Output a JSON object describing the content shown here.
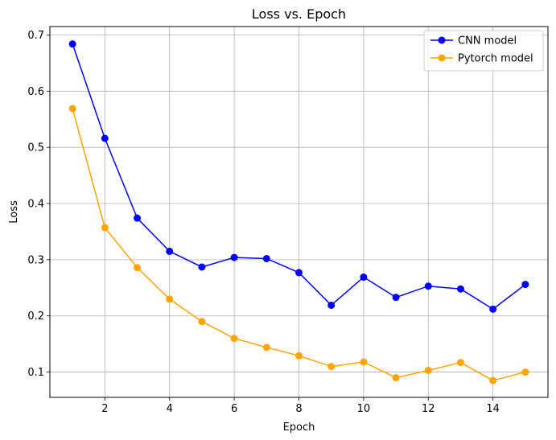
{
  "chart_data": {
    "type": "line",
    "title": "Loss vs. Epoch",
    "xlabel": "Epoch",
    "ylabel": "Loss",
    "xlim": [
      0.3,
      15.7
    ],
    "ylim": [
      0.055,
      0.715
    ],
    "xticks": [
      2,
      4,
      6,
      8,
      10,
      12,
      14
    ],
    "yticks": [
      0.1,
      0.2,
      0.3,
      0.4,
      0.5,
      0.6,
      0.7
    ],
    "grid": true,
    "legend_position": "top-right",
    "x": [
      1,
      2,
      3,
      4,
      5,
      6,
      7,
      8,
      9,
      10,
      11,
      12,
      13,
      14,
      15
    ],
    "series": [
      {
        "name": "CNN model",
        "color": "#0000ff",
        "values": [
          0.684,
          0.516,
          0.374,
          0.315,
          0.287,
          0.304,
          0.302,
          0.277,
          0.219,
          0.269,
          0.233,
          0.253,
          0.248,
          0.212,
          0.256
        ]
      },
      {
        "name": "Pytorch model",
        "color": "#ffa500",
        "values": [
          0.569,
          0.357,
          0.286,
          0.23,
          0.19,
          0.16,
          0.144,
          0.129,
          0.11,
          0.118,
          0.09,
          0.103,
          0.117,
          0.085,
          0.1
        ]
      }
    ]
  }
}
